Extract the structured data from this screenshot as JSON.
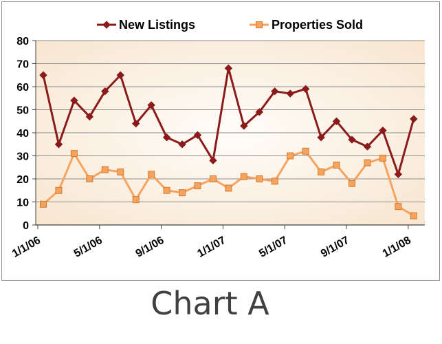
{
  "caption": "Chart A",
  "colors": {
    "new_listings": "#8b1a1a",
    "properties_sold": "#f4a460",
    "sold_marker_stroke": "#d97a2b",
    "plot_bg_center": "#fffdf9",
    "plot_bg_edge": "#f7e4cd",
    "gridline": "#8c8c8c"
  },
  "chart_data": {
    "type": "line",
    "title": "",
    "xlabel": "",
    "ylabel": "",
    "ylim": [
      0,
      80
    ],
    "yticks": [
      0,
      10,
      20,
      30,
      40,
      50,
      60,
      70,
      80
    ],
    "grid": true,
    "legend_position": "top",
    "x": [
      "1/1/06",
      "2/1/06",
      "3/1/06",
      "4/1/06",
      "5/1/06",
      "6/1/06",
      "7/1/06",
      "8/1/06",
      "9/1/06",
      "10/1/06",
      "11/1/06",
      "12/1/06",
      "1/1/07",
      "2/1/07",
      "3/1/07",
      "4/1/07",
      "5/1/07",
      "6/1/07",
      "7/1/07",
      "8/1/07",
      "9/1/07",
      "10/1/07",
      "11/1/07",
      "12/1/07",
      "1/1/08"
    ],
    "xtick_labels": [
      "1/1/06",
      "5/1/06",
      "9/1/06",
      "1/1/07",
      "5/1/07",
      "9/1/07",
      "1/1/08"
    ],
    "series": [
      {
        "name": "New Listings",
        "marker": "diamond",
        "values": [
          65,
          35,
          54,
          47,
          58,
          65,
          44,
          52,
          38,
          35,
          39,
          28,
          68,
          43,
          49,
          58,
          57,
          59,
          38,
          45,
          37,
          34,
          41,
          22,
          46
        ]
      },
      {
        "name": "Properties Sold",
        "marker": "square",
        "values": [
          9,
          15,
          31,
          20,
          24,
          23,
          11,
          22,
          15,
          14,
          17,
          20,
          16,
          21,
          20,
          19,
          30,
          32,
          23,
          26,
          18,
          27,
          29,
          8,
          4
        ]
      }
    ]
  }
}
